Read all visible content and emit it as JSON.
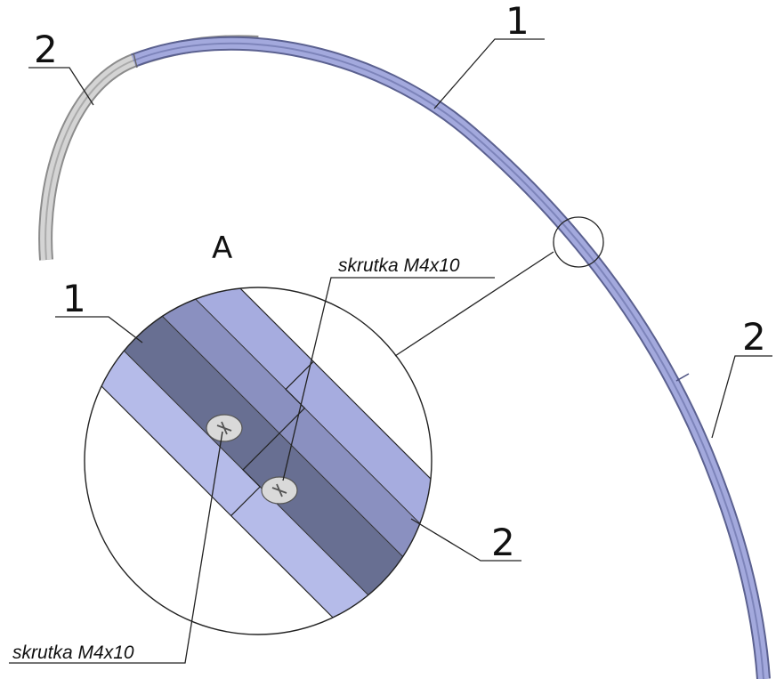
{
  "labels": {
    "part_1_top": "1",
    "part_2_top_left": "2",
    "part_2_right": "2",
    "part_1_detail": "1",
    "part_2_detail": "2",
    "detail_letter": "A",
    "screw_top": "skrutka M4x10",
    "screw_bottom": "skrutka M4x10"
  },
  "colors": {
    "profile_blue": "#9aa2d8",
    "profile_blue_light": "#b9bfe8",
    "profile_dark": "#6a7390",
    "profile_grey": "#c9c9c9",
    "line": "#222222"
  }
}
